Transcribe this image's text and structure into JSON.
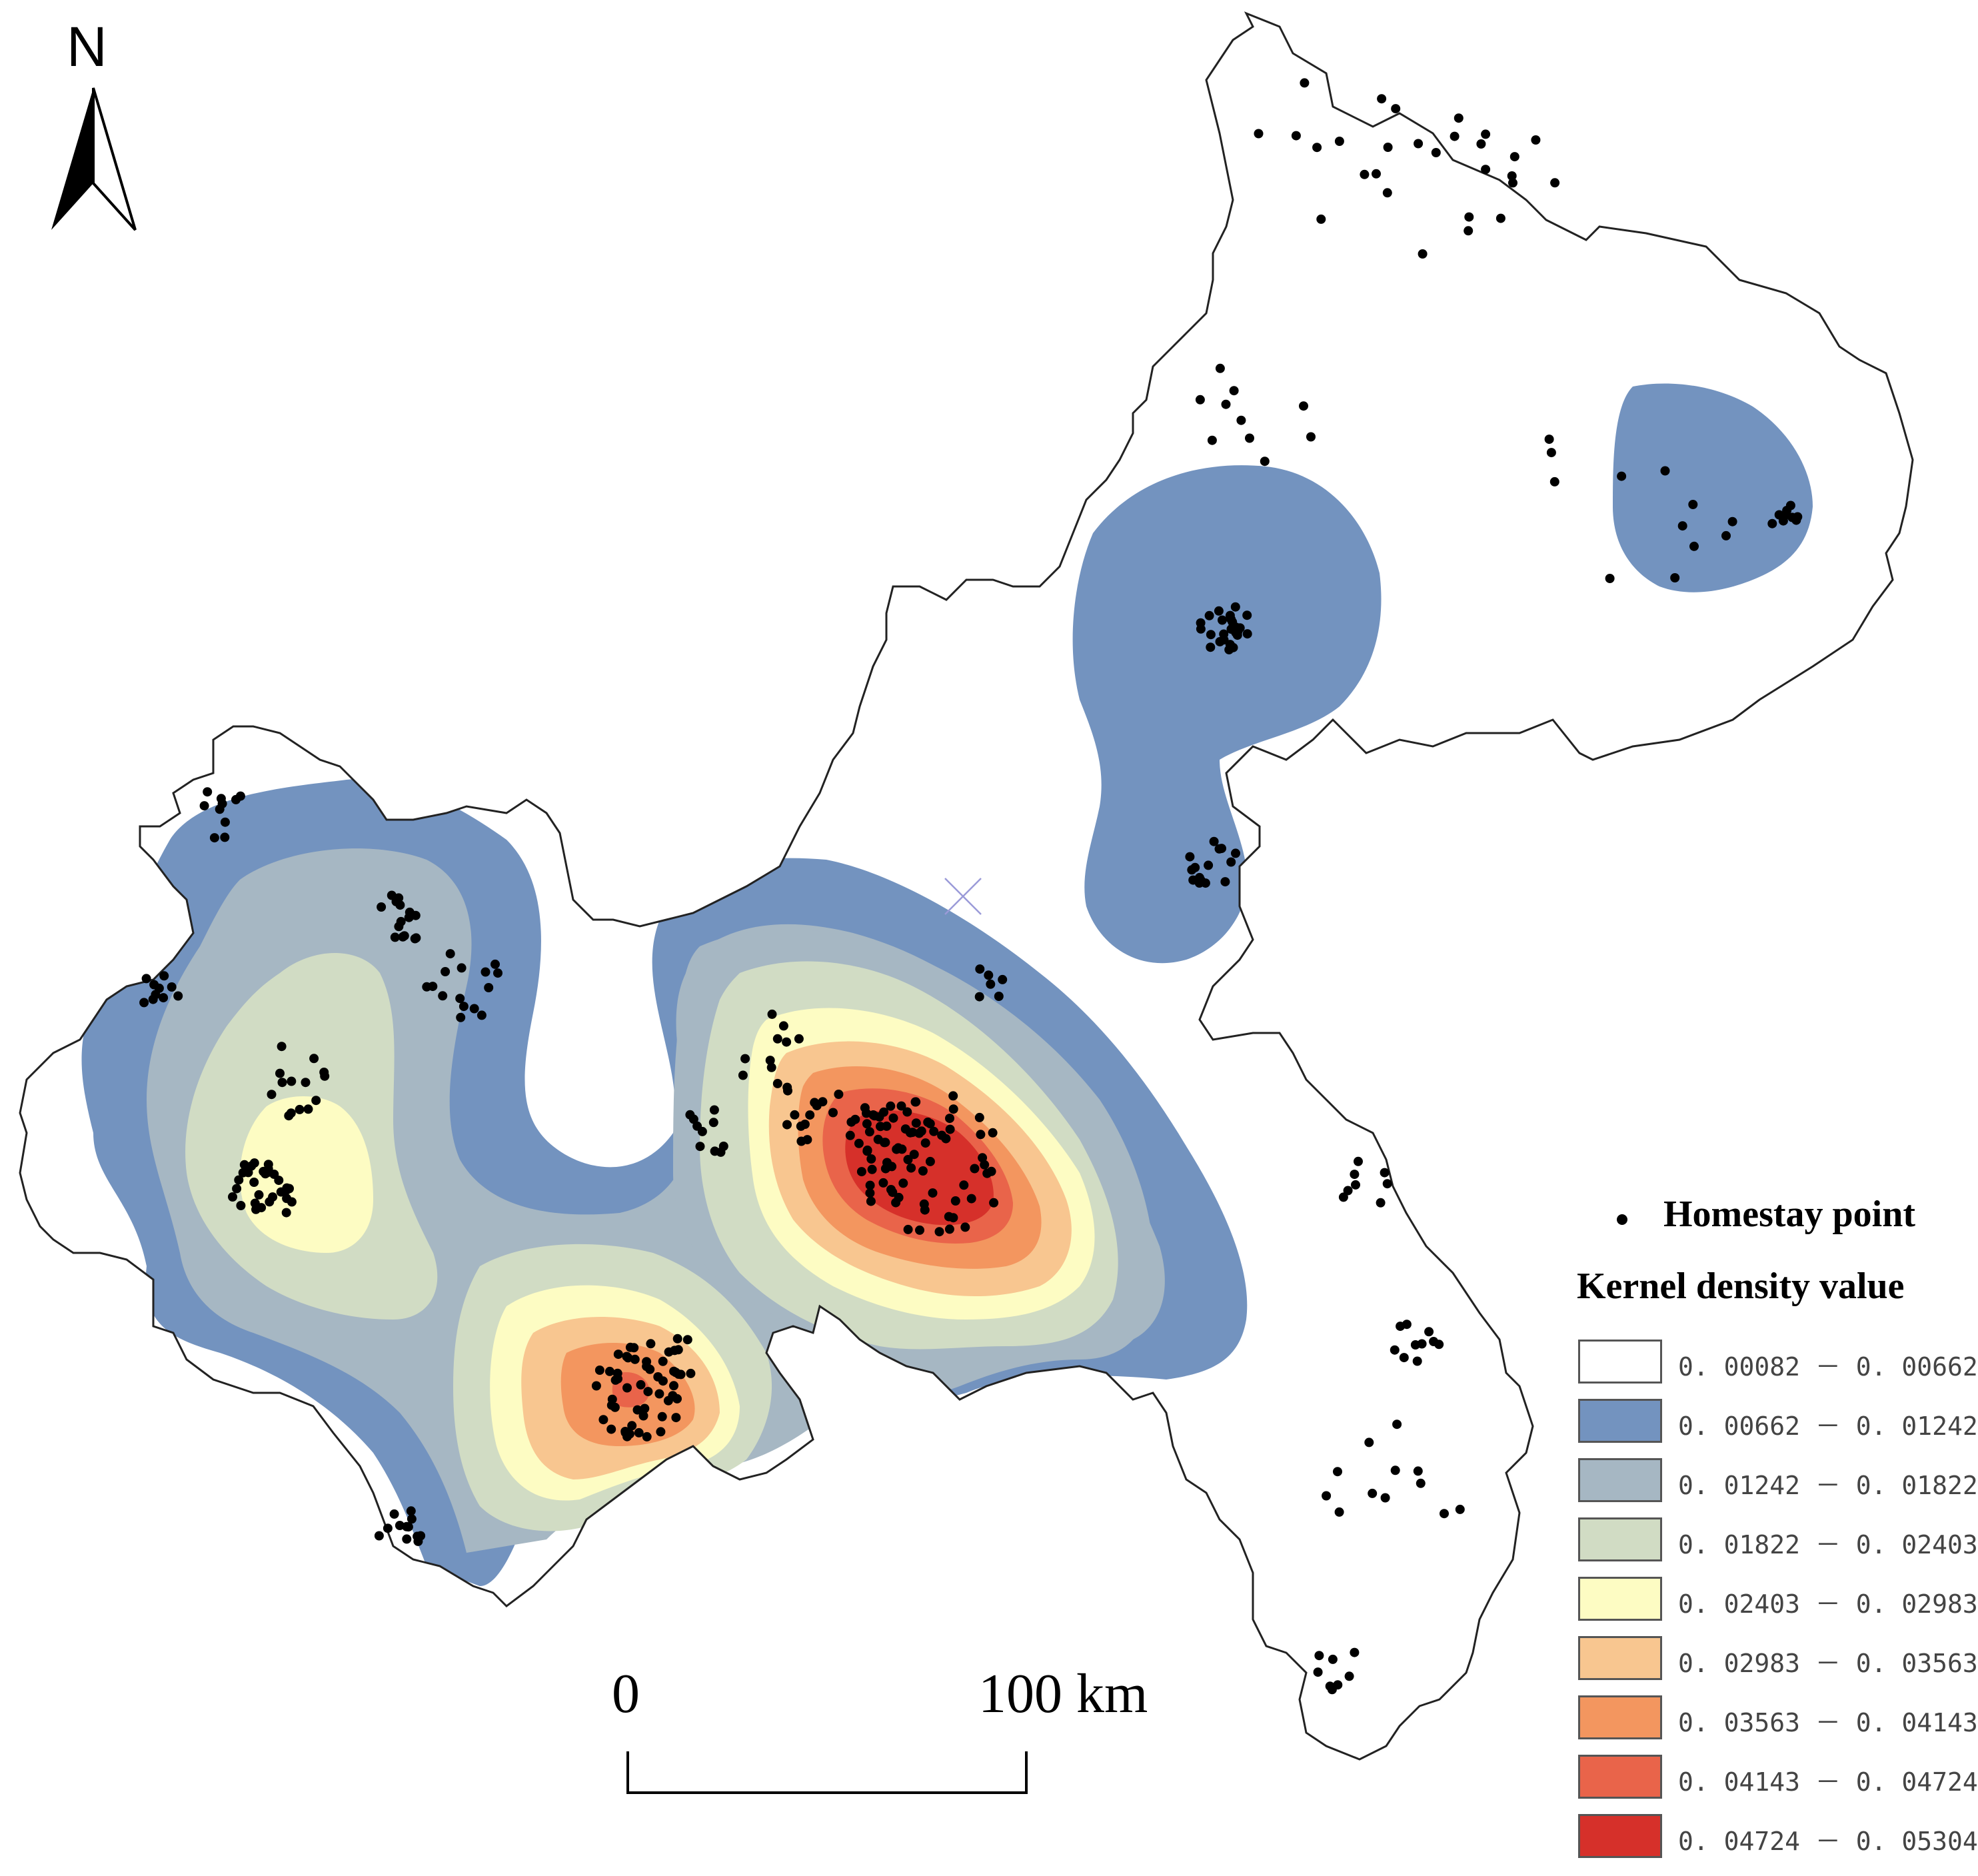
{
  "map": {
    "north_arrow_label": "N",
    "scale_bar": {
      "start_label": "0",
      "end_label": "100 km"
    }
  },
  "legend": {
    "point_label": "Homestay point",
    "title": "Kernel density value",
    "classes": [
      {
        "range": "0. 00082 － 0. 00662",
        "color": "#ffffff"
      },
      {
        "range": "0. 00662 － 0. 01242",
        "color": "#7393bf"
      },
      {
        "range": "0. 01242 － 0. 01822",
        "color": "#a6b7c3"
      },
      {
        "range": "0. 01822 － 0. 02403",
        "color": "#d1dcc4"
      },
      {
        "range": "0. 02403 － 0. 02983",
        "color": "#fdfcc3"
      },
      {
        "range": "0. 02983 － 0. 03563",
        "color": "#f8c690"
      },
      {
        "range": "0. 03563 － 0. 04143",
        "color": "#f3965f"
      },
      {
        "range": "0. 04143 － 0. 04724",
        "color": "#e9644a"
      },
      {
        "range": "0. 04724 － 0. 05304",
        "color": "#d6302a"
      }
    ]
  }
}
